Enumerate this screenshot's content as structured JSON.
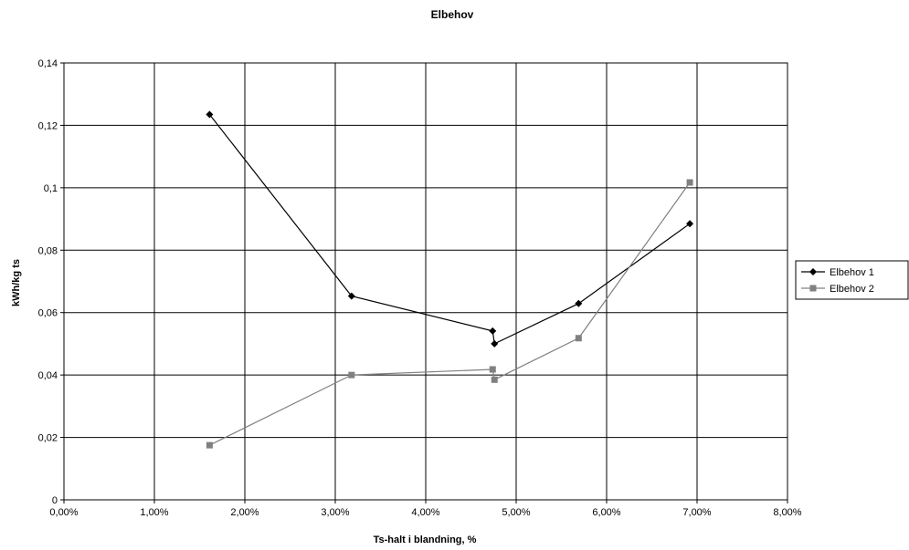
{
  "chart_data": {
    "type": "line",
    "title": "Elbehov",
    "xlabel": "Ts-halt i blandning, %",
    "ylabel": "kWh/kg ts",
    "xlim": [
      0,
      0.08
    ],
    "ylim": [
      0,
      0.14
    ],
    "x_ticks": [
      0,
      0.01,
      0.02,
      0.03,
      0.04,
      0.05,
      0.06,
      0.07,
      0.08
    ],
    "x_tick_labels": [
      "0,00%",
      "1,00%",
      "2,00%",
      "3,00%",
      "4,00%",
      "5,00%",
      "6,00%",
      "7,00%",
      "8,00%"
    ],
    "y_ticks": [
      0,
      0.02,
      0.04,
      0.06,
      0.08,
      0.1,
      0.12,
      0.14
    ],
    "y_tick_labels": [
      "0",
      "0,02",
      "0,04",
      "0,06",
      "0,08",
      "0,1",
      "0,12",
      "0,14"
    ],
    "grid": true,
    "legend_position": "right",
    "series": [
      {
        "name": "Elbehov 1",
        "color": "#000000",
        "marker": "diamond",
        "points": [
          [
            0.0161,
            0.1235
          ],
          [
            0.0318,
            0.0653
          ],
          [
            0.0474,
            0.0541
          ],
          [
            0.0476,
            0.05
          ],
          [
            0.0569,
            0.0629
          ],
          [
            0.0692,
            0.0885
          ]
        ]
      },
      {
        "name": "Elbehov 2",
        "color": "#808080",
        "marker": "square",
        "points": [
          [
            0.0161,
            0.0175
          ],
          [
            0.0318,
            0.04
          ],
          [
            0.0474,
            0.0418
          ],
          [
            0.0476,
            0.0385
          ],
          [
            0.0569,
            0.0518
          ],
          [
            0.0692,
            0.1017
          ]
        ]
      }
    ]
  }
}
